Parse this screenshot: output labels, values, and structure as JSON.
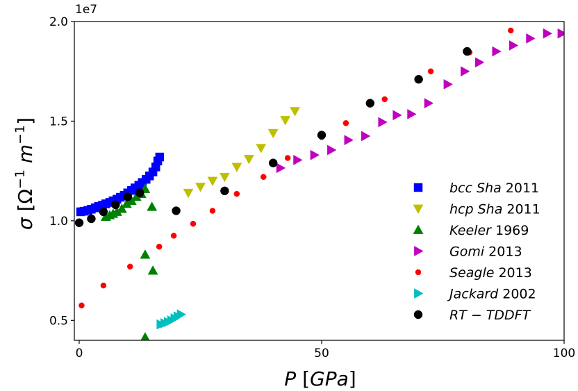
{
  "chart_data": {
    "type": "scatter",
    "title": "",
    "xlabel": "P [GPa]",
    "ylabel": "σ [Ω⁻¹ m⁻¹]",
    "y_multiplier": "1e7",
    "xlim": [
      -1,
      100
    ],
    "ylim": [
      0.4,
      2.0
    ],
    "x_ticks": [
      0,
      50,
      100
    ],
    "y_ticks": [
      0.5,
      1.0,
      1.5,
      2.0
    ],
    "x_tick_labels": [
      "0",
      "50",
      "100"
    ],
    "y_tick_labels": [
      "0.5",
      "1.0",
      "1.5",
      "2.0"
    ],
    "legend_position": "lower-right",
    "grid": false,
    "series": [
      {
        "name": "bcc Sha 2011",
        "name_italic": "bcc Sha",
        "name_year": "2011",
        "color": "#0000ff",
        "marker": "square",
        "points": [
          [
            0.3,
            1.045
          ],
          [
            1.0,
            1.048
          ],
          [
            1.8,
            1.052
          ],
          [
            2.5,
            1.058
          ],
          [
            3.3,
            1.065
          ],
          [
            4.0,
            1.072
          ],
          [
            4.8,
            1.078
          ],
          [
            5.5,
            1.085
          ],
          [
            6.3,
            1.092
          ],
          [
            7.0,
            1.1
          ],
          [
            7.8,
            1.108
          ],
          [
            8.5,
            1.118
          ],
          [
            9.3,
            1.128
          ],
          [
            10.0,
            1.14
          ],
          [
            10.8,
            1.152
          ],
          [
            11.5,
            1.165
          ],
          [
            12.3,
            1.178
          ],
          [
            13.0,
            1.192
          ],
          [
            13.8,
            1.208
          ],
          [
            14.5,
            1.225
          ],
          [
            15.2,
            1.245
          ],
          [
            15.8,
            1.27
          ],
          [
            16.2,
            1.3
          ],
          [
            16.6,
            1.32
          ]
        ]
      },
      {
        "name": "hcp Sha 2011",
        "name_italic": "hcp Sha",
        "name_year": "2011",
        "color": "#bfbf00",
        "marker": "triangle-down",
        "points": [
          [
            22.5,
            1.14
          ],
          [
            25.0,
            1.17
          ],
          [
            27.5,
            1.2
          ],
          [
            30.0,
            1.22
          ],
          [
            32.5,
            1.27
          ],
          [
            35.0,
            1.31
          ],
          [
            37.5,
            1.365
          ],
          [
            40.0,
            1.44
          ],
          [
            42.5,
            1.505
          ],
          [
            44.5,
            1.55
          ]
        ]
      },
      {
        "name": "Keeler 1969",
        "name_italic": "Keeler",
        "name_year": "1969",
        "color": "#008000",
        "marker": "triangle-up",
        "points": [
          [
            5.5,
            1.02
          ],
          [
            6.3,
            1.028
          ],
          [
            7.0,
            1.035
          ],
          [
            7.8,
            1.045
          ],
          [
            8.8,
            1.06
          ],
          [
            9.8,
            1.085
          ],
          [
            10.8,
            1.1
          ],
          [
            11.8,
            1.12
          ],
          [
            12.8,
            1.135
          ],
          [
            13.6,
            1.16
          ],
          [
            15.0,
            1.07
          ],
          [
            13.6,
            0.83
          ],
          [
            15.2,
            0.75
          ],
          [
            13.6,
            0.415
          ]
        ]
      },
      {
        "name": "Gomi 2013",
        "name_italic": "Gomi",
        "name_year": "2013",
        "color": "#bf00bf",
        "marker": "triangle-right",
        "points": [
          [
            41.5,
            1.265
          ],
          [
            45.0,
            1.305
          ],
          [
            48.5,
            1.33
          ],
          [
            52.0,
            1.355
          ],
          [
            55.5,
            1.405
          ],
          [
            59.0,
            1.425
          ],
          [
            62.5,
            1.495
          ],
          [
            65.5,
            1.53
          ],
          [
            68.5,
            1.535
          ],
          [
            72.0,
            1.59
          ],
          [
            76.0,
            1.685
          ],
          [
            79.5,
            1.75
          ],
          [
            82.5,
            1.795
          ],
          [
            86.0,
            1.85
          ],
          [
            89.5,
            1.88
          ],
          [
            93.0,
            1.915
          ],
          [
            96.5,
            1.94
          ],
          [
            99.5,
            1.94
          ]
        ]
      },
      {
        "name": "Seagle 2013",
        "name_italic": "Seagle",
        "name_year": "2013",
        "color": "#ff0000",
        "marker": "circle-small",
        "points": [
          [
            0.5,
            0.575
          ],
          [
            5.0,
            0.675
          ],
          [
            10.5,
            0.77
          ],
          [
            16.5,
            0.87
          ],
          [
            19.5,
            0.925
          ],
          [
            23.5,
            0.985
          ],
          [
            27.5,
            1.05
          ],
          [
            32.5,
            1.135
          ],
          [
            38.0,
            1.22
          ],
          [
            43.0,
            1.315
          ],
          [
            50.0,
            1.42
          ],
          [
            55.0,
            1.49
          ],
          [
            63.0,
            1.61
          ],
          [
            72.5,
            1.75
          ],
          [
            80.5,
            1.845
          ],
          [
            89.0,
            1.955
          ]
        ]
      },
      {
        "name": "Jackard 2002",
        "name_italic": "Jackard",
        "name_year": "2002",
        "color": "#00bfbf",
        "marker": "triangle-right",
        "points": [
          [
            16.8,
            0.48
          ],
          [
            17.6,
            0.486
          ],
          [
            18.3,
            0.492
          ],
          [
            19.0,
            0.5
          ],
          [
            19.7,
            0.51
          ],
          [
            20.3,
            0.52
          ],
          [
            21.0,
            0.53
          ]
        ]
      },
      {
        "name": "RT-TDDFT",
        "name_italic": "RT − TDDFT",
        "name_year": "",
        "color": "#000000",
        "marker": "circle",
        "points": [
          [
            0.0,
            0.99
          ],
          [
            2.5,
            1.01
          ],
          [
            5.0,
            1.045
          ],
          [
            7.5,
            1.08
          ],
          [
            10.0,
            1.12
          ],
          [
            12.5,
            1.14
          ],
          [
            20.0,
            1.05
          ],
          [
            30.0,
            1.15
          ],
          [
            40.0,
            1.29
          ],
          [
            50.0,
            1.43
          ],
          [
            60.0,
            1.59
          ],
          [
            70.0,
            1.71
          ],
          [
            80.0,
            1.85
          ]
        ]
      }
    ]
  }
}
